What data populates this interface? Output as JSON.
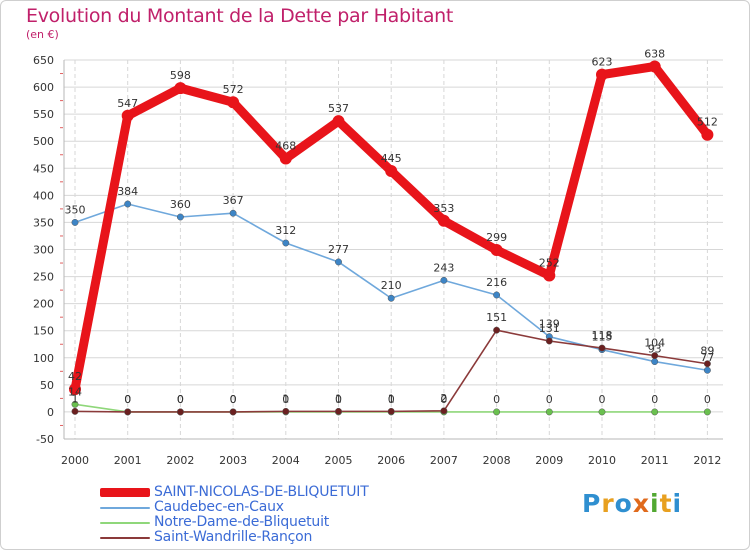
{
  "header": {
    "title": "Evolution du Montant de la Dette par Habitant",
    "subtitle": "(en €)"
  },
  "logo": {
    "letters": [
      "P",
      "r",
      "o",
      "x",
      "i",
      "t",
      "i"
    ],
    "colors": [
      "#2f8fd0",
      "#e8a020",
      "#2f8fd0",
      "#e06a1c",
      "#52a832",
      "#e8a020",
      "#2f8fd0"
    ]
  },
  "chart_data": {
    "type": "line",
    "title": "Evolution du Montant de la Dette par Habitant",
    "subtitle": "(en €)",
    "x": [
      "2000",
      "2001",
      "2002",
      "2003",
      "2004",
      "2005",
      "2006",
      "2007",
      "2008",
      "2009",
      "2010",
      "2011",
      "2012"
    ],
    "ylim": [
      -50,
      650
    ],
    "yticks": [
      -50,
      0,
      50,
      100,
      150,
      200,
      250,
      300,
      350,
      400,
      450,
      500,
      550,
      600,
      650
    ],
    "grid": true,
    "legend_position": "bottom-left",
    "series": [
      {
        "name": "SAINT-NICOLAS-DE-BLIQUETUIT",
        "color": "#e8141a",
        "marker_color": "#e8141a",
        "emphasis": "thick",
        "values": [
          42,
          547,
          598,
          572,
          468,
          537,
          445,
          353,
          299,
          252,
          623,
          638,
          512
        ]
      },
      {
        "name": "Caudebec-en-Caux",
        "color": "#6fa8dc",
        "marker_color": "#3d85c6",
        "values": [
          350,
          384,
          360,
          367,
          312,
          277,
          210,
          243,
          216,
          139,
          115,
          93,
          77
        ]
      },
      {
        "name": "Notre-Dame-de-Bliquetuit",
        "color": "#8fd77a",
        "marker_color": "#6ac04f",
        "values": [
          14,
          0,
          0,
          0,
          0,
          0,
          0,
          0,
          0,
          0,
          0,
          0,
          0
        ]
      },
      {
        "name": "Saint-Wandrille-Rançon",
        "color": "#8b3a3a",
        "marker_color": "#6b2020",
        "values": [
          1,
          0,
          0,
          0,
          1,
          1,
          1,
          2,
          151,
          131,
          118,
          104,
          89
        ]
      }
    ],
    "data_labels": [
      {
        "series": 0,
        "text": [
          "42",
          "547",
          "598",
          "572",
          "468",
          "537",
          "445",
          "353",
          "299",
          "252",
          "623",
          "638",
          "512"
        ]
      },
      {
        "series": 1,
        "text": [
          "350",
          "384",
          "360",
          "367",
          "312",
          "277",
          "210",
          "243",
          "216",
          "139",
          "115",
          "93",
          "77"
        ]
      },
      {
        "series": 2,
        "text": [
          "14",
          "0",
          "0",
          "0",
          "0",
          "0",
          "0",
          "0",
          "0",
          "0",
          "0",
          "0",
          "0"
        ]
      },
      {
        "series": 3,
        "text": [
          "1",
          "0",
          "0",
          "0",
          "1",
          "1",
          "1",
          "2",
          "151",
          "131",
          "118",
          "104",
          "89"
        ]
      }
    ]
  }
}
